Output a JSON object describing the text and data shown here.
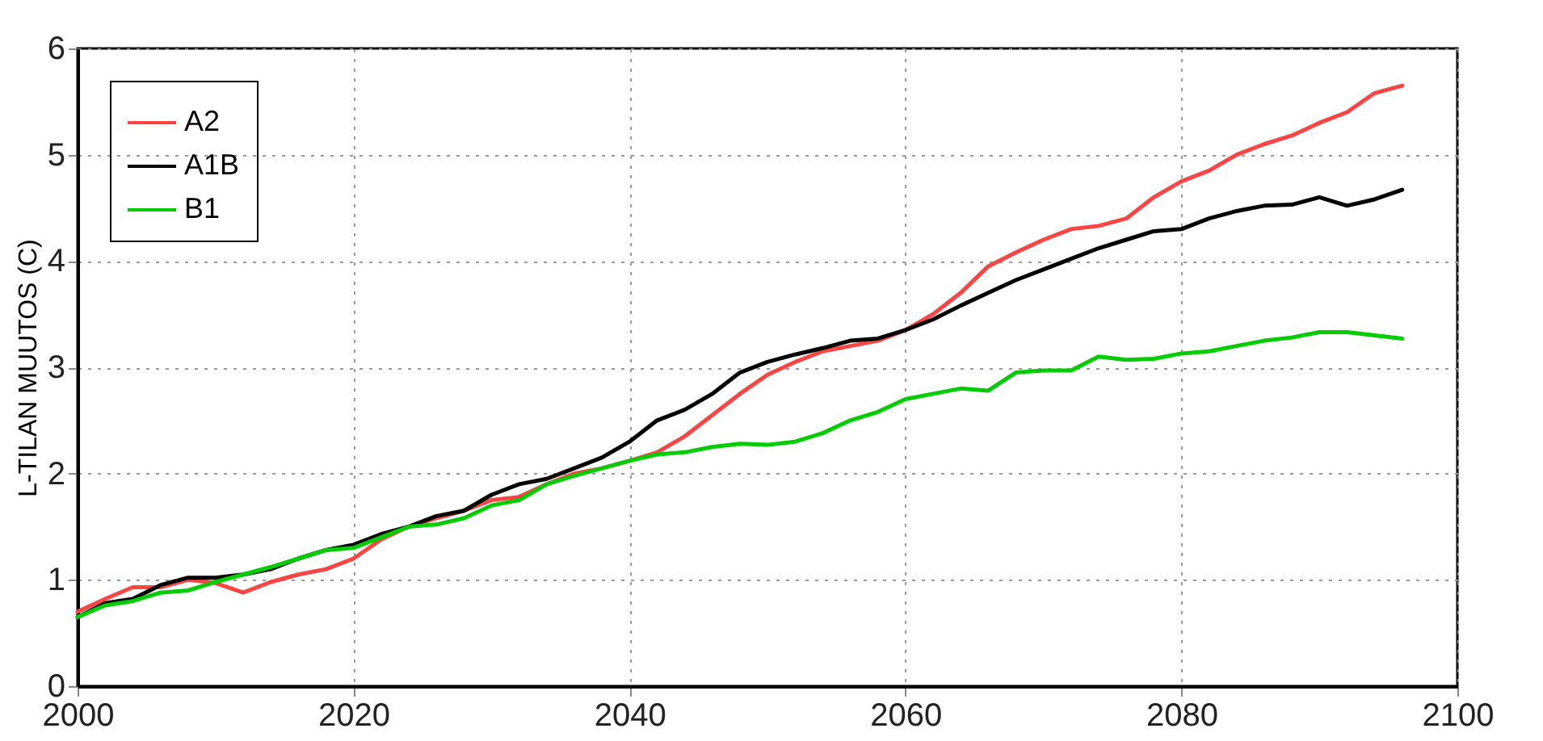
{
  "chart_data": {
    "type": "line",
    "ylabel": "L-TILAN MUUTOS (C)",
    "x": [
      2000,
      2002,
      2004,
      2006,
      2008,
      2010,
      2012,
      2014,
      2016,
      2018,
      2020,
      2022,
      2024,
      2026,
      2028,
      2030,
      2032,
      2034,
      2036,
      2038,
      2040,
      2042,
      2044,
      2046,
      2048,
      2050,
      2052,
      2054,
      2056,
      2058,
      2060,
      2062,
      2064,
      2066,
      2068,
      2070,
      2072,
      2074,
      2076,
      2078,
      2080,
      2082,
      2084,
      2086,
      2088,
      2090,
      2092,
      2094,
      2096
    ],
    "series": [
      {
        "name": "A2",
        "color": "#ff4444",
        "values": [
          0.7,
          0.82,
          0.93,
          0.93,
          1.0,
          0.97,
          0.88,
          0.98,
          1.05,
          1.1,
          1.2,
          1.38,
          1.5,
          1.58,
          1.65,
          1.75,
          1.78,
          1.9,
          2.0,
          2.05,
          2.12,
          2.2,
          2.35,
          2.55,
          2.75,
          2.93,
          3.05,
          3.15,
          3.2,
          3.25,
          3.35,
          3.5,
          3.7,
          3.95,
          4.08,
          4.2,
          4.3,
          4.33,
          4.4,
          4.6,
          4.75,
          4.85,
          5.0,
          5.1,
          5.18,
          5.3,
          5.4,
          5.58,
          5.65
        ]
      },
      {
        "name": "A1B",
        "color": "#000000",
        "values": [
          0.65,
          0.78,
          0.82,
          0.95,
          1.02,
          1.02,
          1.05,
          1.1,
          1.2,
          1.28,
          1.33,
          1.43,
          1.5,
          1.6,
          1.65,
          1.8,
          1.9,
          1.95,
          2.05,
          2.15,
          2.3,
          2.5,
          2.6,
          2.75,
          2.95,
          3.05,
          3.12,
          3.18,
          3.25,
          3.27,
          3.35,
          3.45,
          3.58,
          3.7,
          3.82,
          3.92,
          4.02,
          4.12,
          4.2,
          4.28,
          4.3,
          4.4,
          4.47,
          4.52,
          4.53,
          4.6,
          4.52,
          4.58,
          4.67
        ]
      },
      {
        "name": "B1",
        "color": "#00cc00",
        "values": [
          0.65,
          0.76,
          0.8,
          0.88,
          0.9,
          0.98,
          1.05,
          1.12,
          1.2,
          1.28,
          1.3,
          1.4,
          1.5,
          1.52,
          1.58,
          1.7,
          1.75,
          1.9,
          1.98,
          2.05,
          2.12,
          2.18,
          2.2,
          2.25,
          2.28,
          2.27,
          2.3,
          2.38,
          2.5,
          2.58,
          2.7,
          2.75,
          2.8,
          2.78,
          2.95,
          2.97,
          2.97,
          3.1,
          3.07,
          3.08,
          3.13,
          3.15,
          3.2,
          3.25,
          3.28,
          3.33,
          3.33,
          3.3,
          3.27
        ]
      }
    ],
    "xlim": [
      2000,
      2100
    ],
    "xticks": [
      2000,
      2020,
      2040,
      2060,
      2080,
      2100
    ],
    "ylim": [
      0,
      6
    ],
    "yticks": [
      0,
      1,
      2,
      3,
      4,
      5,
      6
    ],
    "grid": true,
    "legend": "top left",
    "line_style": "solid"
  }
}
